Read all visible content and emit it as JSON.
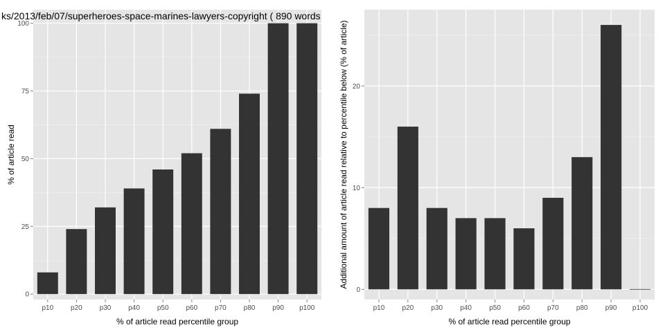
{
  "chart_data": [
    {
      "type": "bar",
      "title": "ks/2013/feb/07/superheroes-space-marines-lawyers-copyright ( 890 words",
      "xlabel": "% of article read percentile group",
      "ylabel": "% of article read",
      "categories": [
        "p10",
        "p20",
        "p30",
        "p40",
        "p50",
        "p60",
        "p70",
        "p80",
        "p90",
        "p100"
      ],
      "values": [
        8,
        24,
        32,
        39,
        46,
        52,
        61,
        74,
        100,
        100
      ],
      "ylim": [
        -2,
        105
      ],
      "yticks": [
        0,
        25,
        50,
        75,
        100
      ],
      "ytick_labels": [
        "0",
        "25",
        "50",
        "75",
        "100"
      ],
      "grid": true,
      "background": "#e5e5e5",
      "bar_color": "#333333"
    },
    {
      "type": "bar",
      "title": "",
      "xlabel": "% of article read percentile group",
      "ylabel": "Additional amount of article read relative to percentile below (% of article)",
      "categories": [
        "p10",
        "p20",
        "p30",
        "p40",
        "p50",
        "p60",
        "p70",
        "p80",
        "p90",
        "p100"
      ],
      "values": [
        8,
        16,
        8,
        7,
        7,
        6,
        9,
        13,
        26,
        0
      ],
      "ylim": [
        -1,
        27.5
      ],
      "yticks": [
        0,
        10,
        20
      ],
      "ytick_labels": [
        "0",
        "10",
        "20"
      ],
      "grid": true,
      "background": "#e5e5e5",
      "bar_color": "#333333"
    }
  ]
}
